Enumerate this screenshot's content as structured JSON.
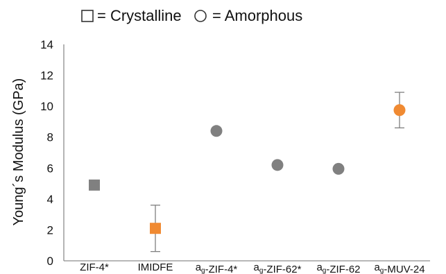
{
  "legend": {
    "crystalline": "= Crystalline",
    "amorphous": "= Amorphous"
  },
  "chart_data": {
    "type": "scatter",
    "title": "",
    "xlabel": "",
    "ylabel": "Young´s Modulus (GPa)",
    "ylim": [
      0,
      14
    ],
    "yticks": [
      0,
      2,
      4,
      6,
      8,
      10,
      12,
      14
    ],
    "grid": false,
    "legend_position": "top",
    "categories": [
      {
        "parts": [
          {
            "t": "ZIF-4*"
          }
        ]
      },
      {
        "parts": [
          {
            "t": "IMIDFE"
          }
        ]
      },
      {
        "parts": [
          {
            "t": "a"
          },
          {
            "t": "g",
            "sub": true
          },
          {
            "t": "-ZIF-4*"
          }
        ]
      },
      {
        "parts": [
          {
            "t": "a"
          },
          {
            "t": "g",
            "sub": true
          },
          {
            "t": "-ZIF-62*"
          }
        ]
      },
      {
        "parts": [
          {
            "t": "a"
          },
          {
            "t": "g",
            "sub": true
          },
          {
            "t": "-ZIF-62"
          }
        ]
      },
      {
        "parts": [
          {
            "t": "a"
          },
          {
            "t": "g",
            "sub": true
          },
          {
            "t": "-MUV-24"
          }
        ]
      }
    ],
    "points": [
      {
        "category_index": 0,
        "value": 4.9,
        "phase": "crystalline",
        "color": "#808080"
      },
      {
        "category_index": 1,
        "value": 2.1,
        "phase": "crystalline",
        "color": "#f08a32",
        "err_low": 0.6,
        "err_high": 3.6
      },
      {
        "category_index": 2,
        "value": 8.4,
        "phase": "amorphous",
        "color": "#808080"
      },
      {
        "category_index": 3,
        "value": 6.2,
        "phase": "amorphous",
        "color": "#808080"
      },
      {
        "category_index": 4,
        "value": 5.95,
        "phase": "amorphous",
        "color": "#808080"
      },
      {
        "category_index": 5,
        "value": 9.75,
        "phase": "amorphous",
        "color": "#f08a32",
        "err_low": 8.6,
        "err_high": 10.9
      }
    ],
    "colors": {
      "gray": "#808080",
      "orange": "#f08a32",
      "axis": "#8c8c8c",
      "errorbar": "#7f7f7f"
    }
  }
}
